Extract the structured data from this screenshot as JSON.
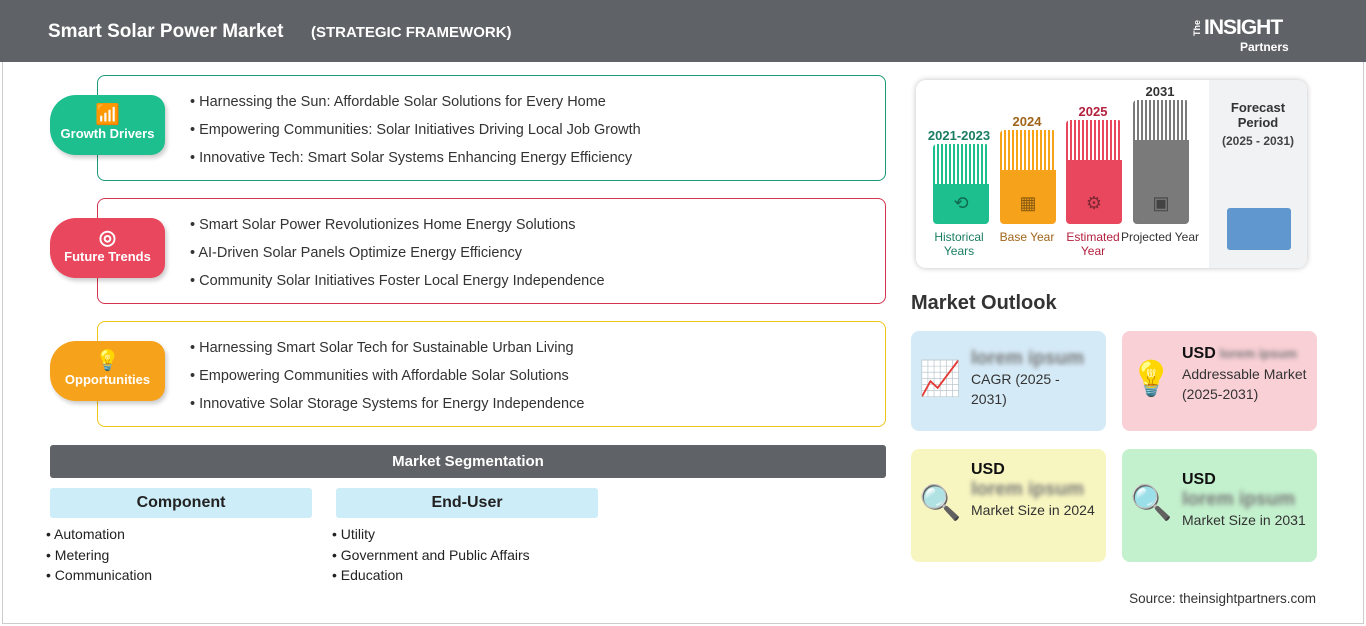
{
  "header": {
    "title": "Smart Solar Power Market",
    "subtitle": "(STRATEGIC FRAMEWORK)",
    "logo": {
      "the": "The",
      "insight": "INSIGHT",
      "partners": "Partners"
    }
  },
  "sections": [
    {
      "label": "Growth Drivers",
      "color": "#1dbf8e",
      "border": "#1a9a76",
      "icon": "growth-chart-icon",
      "items": [
        "Harnessing the Sun: Affordable Solar Solutions for Every Home",
        "Empowering Communities: Solar Initiatives Driving Local Job Growth",
        "Innovative Tech: Smart Solar Systems Enhancing Energy Efficiency"
      ]
    },
    {
      "label": "Future Trends",
      "color": "#e8475d",
      "border": "#d4344f",
      "icon": "target-icon",
      "items": [
        "Smart Solar Power Revolutionizes Home Energy Solutions",
        "AI-Driven Solar Panels Optimize Energy Efficiency",
        "Community Solar Initiatives Foster Local Energy Independence"
      ]
    },
    {
      "label": "Opportunities",
      "color": "#f7a21b",
      "border": "#f0c419",
      "icon": "lightbulb-hand-icon",
      "items": [
        "Harnessing Smart Solar Tech for Sustainable Urban Living",
        "Empowering Communities with Affordable Solar Solutions",
        "Innovative Solar Storage Systems for Energy Independence"
      ]
    }
  ],
  "segmentation": {
    "title": "Market Segmentation",
    "columns": [
      {
        "title": "Component",
        "items": [
          "Automation",
          "Metering",
          "Communication"
        ]
      },
      {
        "title": "End-User",
        "items": [
          "Utility",
          "Government and Public Affairs",
          "Education"
        ]
      }
    ]
  },
  "timeline": {
    "bars": [
      {
        "year": "2021-2023",
        "label": "Historical Years",
        "color": "#1dbf8e",
        "text": "#1a7d62"
      },
      {
        "year": "2024",
        "label": "Base Year",
        "color": "#f7a21b",
        "text": "#a0641a"
      },
      {
        "year": "2025",
        "label": "Estimated Year",
        "color": "#e8475d",
        "text": "#b3203e"
      },
      {
        "year": "2031",
        "label": "Projected Year",
        "color": "#7a7a7a",
        "text": "#333333"
      }
    ],
    "forecast": {
      "title": "Forecast Period",
      "period": "(2025 - 2031)"
    }
  },
  "outlook": {
    "title": "Market Outlook",
    "cards": [
      {
        "prefix": "",
        "value": "lorem ipsum",
        "label": "CAGR (2025 - 2031)",
        "bg": "#d5eaf7",
        "icon": "growth-chart-icon"
      },
      {
        "prefix": "USD",
        "value": "lorem ipsum",
        "label": "Addressable Market (2025-2031)",
        "bg": "#f8d0d6",
        "icon": "dollar-bulb-icon"
      },
      {
        "prefix": "USD",
        "value": "lorem ipsum",
        "label": "Market Size in 2024",
        "bg": "#f8f6c0",
        "icon": "market-size-icon"
      },
      {
        "prefix": "USD",
        "value": "lorem ipsum",
        "label": "Market Size in 2031",
        "bg": "#c3f0cd",
        "icon": "market-size-icon"
      }
    ]
  },
  "source": "Source: theinsightpartners.com"
}
